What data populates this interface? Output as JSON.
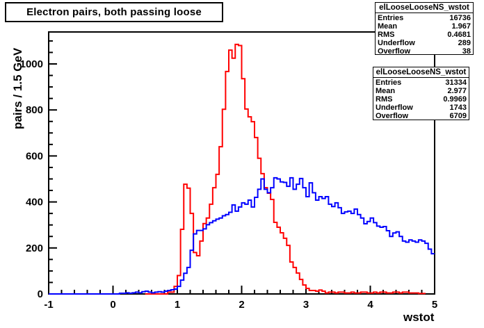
{
  "title": "Electron pairs, both passing loose",
  "axes": {
    "x": {
      "label": "wstot",
      "min": -1,
      "max": 5,
      "major_tick_step": 1,
      "minor_tick_step": 0.2,
      "tick_labels": [
        "-1",
        "0",
        "1",
        "2",
        "3",
        "4",
        "5"
      ]
    },
    "y": {
      "label": "pairs / 1.5 GeV",
      "min": 0,
      "max": 1139,
      "major_tick_step": 200,
      "minor_tick_step": 50,
      "tick_labels": [
        "0",
        "200",
        "400",
        "600",
        "800",
        "1000"
      ]
    }
  },
  "stats_boxes": [
    {
      "title": "elLooseLooseNS_wstot",
      "rows": [
        [
          "Entries",
          "16736"
        ],
        [
          "Mean",
          "1.967"
        ],
        [
          "RMS",
          "0.4681"
        ],
        [
          "Underflow",
          "289"
        ],
        [
          "Overflow",
          "38"
        ]
      ]
    },
    {
      "title": "elLooseLooseNS_wstot",
      "rows": [
        [
          "Entries",
          "31334"
        ],
        [
          "Mean",
          "2.977"
        ],
        [
          "RMS",
          "0.9969"
        ],
        [
          "Underflow",
          "1743"
        ],
        [
          "Overflow",
          "6709"
        ]
      ]
    }
  ],
  "colors": {
    "series_red": "#ff0000",
    "series_blue": "#0000ff",
    "frame": "#000000",
    "background": "#ffffff"
  },
  "chart_data": {
    "type": "bar",
    "subtype": "step-histogram",
    "title": "Electron pairs, both passing loose",
    "xlabel": "wstot",
    "ylabel": "pairs / 1.5 GeV",
    "xlim": [
      -1,
      5
    ],
    "ylim": [
      0,
      1139
    ],
    "grid": false,
    "legend": "none (stats boxes top-right)",
    "bin_width": 0.05,
    "series": [
      {
        "name": "elLooseLooseNS_wstot (red)",
        "color": "#ff0000",
        "close_to_zero": true,
        "baseline_start": 0.5,
        "x_start": 0.85,
        "values": [
          8,
          8,
          33,
          80,
          281,
          477,
          460,
          350,
          180,
          166,
          230,
          306,
          330,
          390,
          462,
          520,
          640,
          803,
          967,
          1060,
          1025,
          1085,
          1080,
          936,
          804,
          770,
          749,
          680,
          590,
          523,
          462,
          438,
          411,
          311,
          290,
          266,
          242,
          211,
          139,
          115,
          91,
          63,
          39,
          24,
          15,
          15,
          12,
          17,
          12,
          4,
          8,
          8,
          4,
          8,
          8,
          4,
          4,
          8,
          4,
          4,
          8,
          8,
          4,
          4,
          8,
          4,
          8,
          8,
          4,
          4,
          8,
          8,
          4,
          8,
          8,
          4,
          4,
          4,
          2,
          2
        ]
      },
      {
        "name": "elLooseLooseNS_wstot (blue)",
        "color": "#0000ff",
        "close_to_zero": false,
        "baseline_start": -1,
        "x_start": 0.1,
        "values": [
          3,
          3,
          5,
          3,
          5,
          8,
          5,
          10,
          12,
          8,
          5,
          8,
          10,
          8,
          12,
          15,
          18,
          21,
          33,
          60,
          90,
          115,
          190,
          261,
          276,
          276,
          283,
          301,
          310,
          318,
          325,
          330,
          340,
          345,
          355,
          387,
          360,
          378,
          396,
          390,
          408,
          378,
          420,
          455,
          500,
          455,
          440,
          462,
          505,
          500,
          487,
          485,
          468,
          505,
          455,
          477,
          502,
          462,
          423,
          483,
          440,
          408,
          423,
          415,
          423,
          390,
          380,
          396,
          375,
          350,
          357,
          360,
          350,
          369,
          345,
          330,
          305,
          315,
          330,
          310,
          295,
          290,
          293,
          275,
          250,
          265,
          270,
          250,
          230,
          225,
          235,
          230,
          225,
          235,
          230,
          220,
          195,
          175
        ]
      }
    ]
  }
}
